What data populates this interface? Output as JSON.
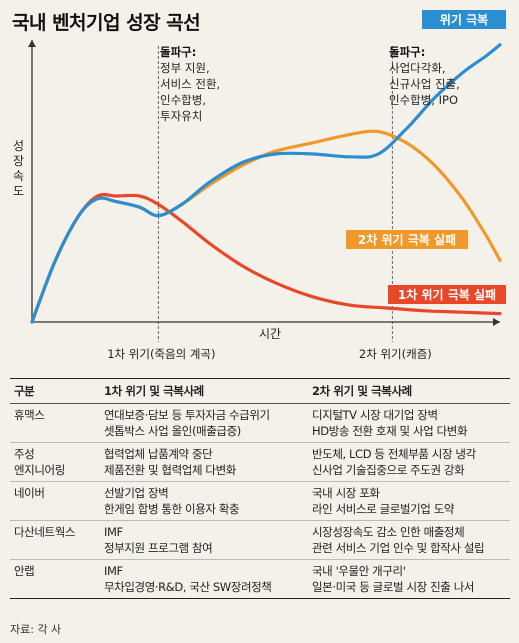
{
  "page_title": "국내 벤처기업 성장 곡선",
  "chart_data": {
    "type": "line",
    "title": "국내 벤처기업 성장 곡선",
    "xlabel": "시간",
    "ylabel": "성장속도",
    "x_ticks": [
      {
        "x": 0.27,
        "label": "1차 위기(죽음의 계곡)"
      },
      {
        "x": 0.77,
        "label": "2차 위기(캐즘)"
      }
    ],
    "xlim": [
      0,
      1
    ],
    "ylim": [
      0,
      1
    ],
    "series": [
      {
        "name": "위기 극복",
        "color": "#2a8fd0",
        "x": [
          0,
          0.05,
          0.1,
          0.14,
          0.18,
          0.23,
          0.27,
          0.32,
          0.38,
          0.45,
          0.52,
          0.6,
          0.68,
          0.74,
          0.8,
          0.86,
          0.92,
          0.97,
          1.0
        ],
        "y": [
          0,
          0.22,
          0.38,
          0.44,
          0.43,
          0.41,
          0.38,
          0.42,
          0.5,
          0.57,
          0.6,
          0.6,
          0.59,
          0.6,
          0.69,
          0.8,
          0.89,
          0.95,
          0.99
        ]
      },
      {
        "name": "2차 위기 극복 실패",
        "color": "#f0982a",
        "x": [
          0,
          0.05,
          0.1,
          0.14,
          0.18,
          0.23,
          0.27,
          0.32,
          0.38,
          0.45,
          0.52,
          0.6,
          0.68,
          0.74,
          0.8,
          0.86,
          0.92,
          0.97,
          1.0
        ],
        "y": [
          0,
          0.22,
          0.38,
          0.44,
          0.43,
          0.41,
          0.38,
          0.42,
          0.49,
          0.56,
          0.61,
          0.64,
          0.67,
          0.68,
          0.64,
          0.56,
          0.44,
          0.31,
          0.22
        ]
      },
      {
        "name": "1차 위기 극복 실패",
        "color": "#e8472a",
        "x": [
          0,
          0.05,
          0.1,
          0.14,
          0.18,
          0.23,
          0.27,
          0.32,
          0.38,
          0.45,
          0.52,
          0.6,
          0.68,
          0.76,
          0.84,
          0.92,
          1.0
        ],
        "y": [
          0,
          0.22,
          0.38,
          0.45,
          0.45,
          0.45,
          0.42,
          0.36,
          0.28,
          0.2,
          0.14,
          0.09,
          0.06,
          0.05,
          0.04,
          0.035,
          0.03
        ]
      }
    ],
    "annotations": [
      {
        "heading": "돌파구:",
        "lines": [
          "정부 지원,",
          "서비스 전환,",
          "인수합병,",
          "투자유치"
        ]
      },
      {
        "heading": "돌파구:",
        "lines": [
          "사업다각화,",
          "신규사업 진출,",
          "인수합병, IPO"
        ]
      }
    ],
    "grid": false
  },
  "table": {
    "headers": [
      "구분",
      "1차 위기 및 극복사례",
      "2차 위기 및 극복사례"
    ],
    "rows": [
      {
        "company": [
          "휴맥스"
        ],
        "crisis1": [
          "연대보증·담보 등 투자자금 수급위기",
          "셋톱박스 사업 올인(매출급증)"
        ],
        "crisis2": [
          "디지털TV 시장 대기업 장벽",
          "HD방송 전환 호재 및 사업 다변화"
        ]
      },
      {
        "company": [
          "주성",
          "엔지니어링"
        ],
        "crisis1": [
          "협력업체 납품계약 중단",
          "제품전환 및 협력업체 다변화"
        ],
        "crisis2": [
          "반도체, LCD 등 전체부품 시장 냉각",
          "신사업 기술집중으로 주도권 강화"
        ]
      },
      {
        "company": [
          "네이버"
        ],
        "crisis1": [
          "선발기업 장벽",
          "한게임 합병 통한 이용자 확충"
        ],
        "crisis2": [
          "국내 시장 포화",
          "라인 서비스로 글로벌기업 도약"
        ]
      },
      {
        "company": [
          "다산네트웍스"
        ],
        "crisis1": [
          "IMF",
          "정부지원 프로그램 참여"
        ],
        "crisis2": [
          "시장성장속도 감소 인한 매출정체",
          "관련 서비스 기업 인수 및 합작사 설립"
        ]
      },
      {
        "company": [
          "안랩"
        ],
        "crisis1": [
          "IMF",
          "무차입경영·R&D, 국산 SW장려정책"
        ],
        "crisis2": [
          "국내 '우물안 개구리'",
          "일본·미국 등 글로벌 시장 진출 나서"
        ]
      }
    ]
  },
  "source": "자료: 각 사"
}
